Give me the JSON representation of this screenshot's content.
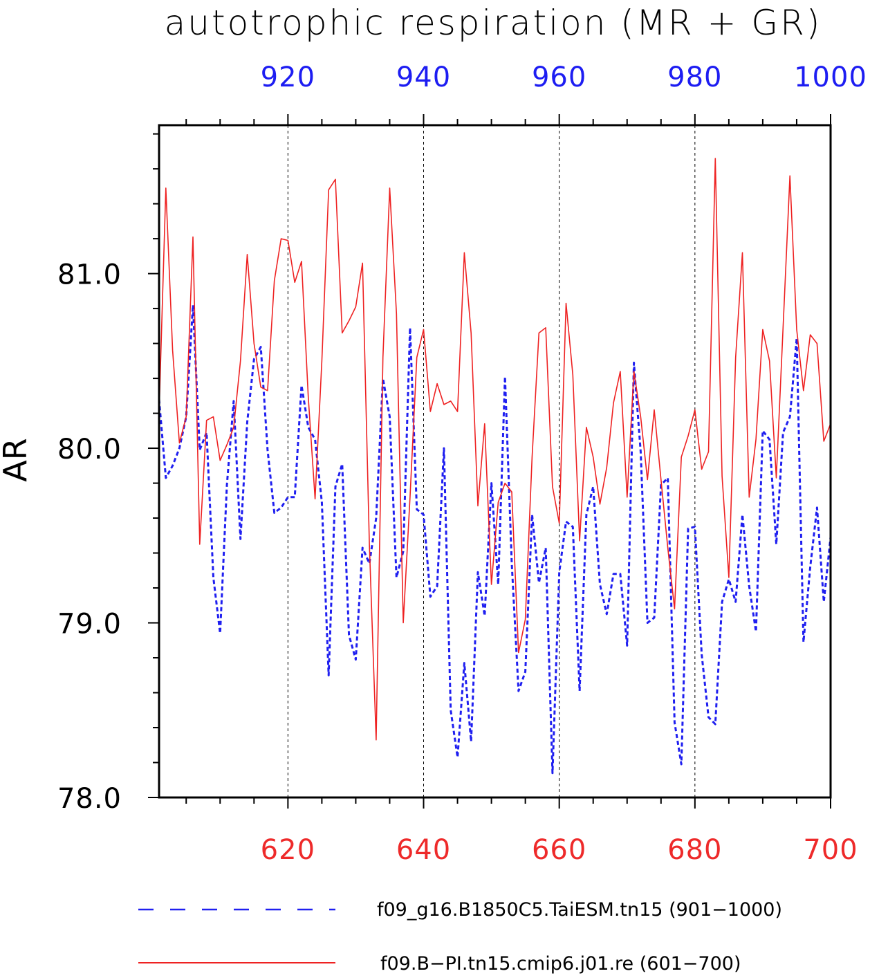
{
  "chart_data": {
    "type": "line",
    "title": "autotrophic respiration (MR + GR)",
    "ylabel": "AR",
    "ylim": [
      78.0,
      81.85
    ],
    "y_ticks": [
      "78.0",
      "79.0",
      "80.0",
      "81.0"
    ],
    "grid": "dashed vertical at major x ticks",
    "x_top": {
      "range": [
        901,
        1000
      ],
      "ticks": [
        "920",
        "940",
        "960",
        "980",
        "1000"
      ],
      "color": "#1f1ff0"
    },
    "x_bottom": {
      "range": [
        601,
        700
      ],
      "ticks": [
        "620",
        "640",
        "660",
        "680",
        "700"
      ],
      "color": "#ee2222"
    },
    "series": [
      {
        "name": "f09_g16.B1850C5.TaiESM.tn15 (901-1000)",
        "axis": "top",
        "color": "#1f1ff0",
        "style": "dashed",
        "x_start": 901,
        "values": [
          80.28,
          79.83,
          79.9,
          80.0,
          80.18,
          80.82,
          79.99,
          80.09,
          79.26,
          78.94,
          79.79,
          80.27,
          79.48,
          80.15,
          80.51,
          80.58,
          79.99,
          79.63,
          79.66,
          79.72,
          79.72,
          80.36,
          80.12,
          80.05,
          79.69,
          78.7,
          79.78,
          79.91,
          78.93,
          78.79,
          79.43,
          79.34,
          79.6,
          80.4,
          80.18,
          79.26,
          79.41,
          80.69,
          79.65,
          79.62,
          79.15,
          79.21,
          80.0,
          78.5,
          78.23,
          78.77,
          78.32,
          79.29,
          79.04,
          79.8,
          79.22,
          80.41,
          79.34,
          78.61,
          78.72,
          79.62,
          79.23,
          79.43,
          78.14,
          79.29,
          79.58,
          79.55,
          78.61,
          79.62,
          79.78,
          79.22,
          79.05,
          79.28,
          79.28,
          78.87,
          80.49,
          79.98,
          79.0,
          79.03,
          79.79,
          79.83,
          78.43,
          78.19,
          79.54,
          79.55,
          78.82,
          78.46,
          78.42,
          79.12,
          79.25,
          79.12,
          79.62,
          79.21,
          78.95,
          80.1,
          80.05,
          79.45,
          80.09,
          80.18,
          80.63,
          78.89,
          79.32,
          79.66,
          79.12,
          79.49
        ],
        "y_end": 79.49
      },
      {
        "name": "f09.B-PI.tn15.cmip6.j01.re (601-700)",
        "axis": "bottom",
        "color": "#ee2222",
        "style": "solid",
        "x_start": 601,
        "values": [
          80.2,
          81.49,
          80.56,
          80.03,
          80.18,
          81.21,
          79.45,
          80.16,
          80.18,
          79.93,
          80.02,
          80.12,
          80.5,
          81.11,
          80.6,
          80.35,
          80.33,
          80.96,
          81.2,
          81.19,
          80.95,
          81.07,
          80.29,
          79.71,
          80.5,
          81.48,
          81.54,
          80.66,
          80.73,
          80.81,
          81.06,
          79.45,
          78.33,
          80.52,
          81.49,
          80.77,
          79.0,
          79.72,
          80.52,
          80.68,
          80.21,
          80.37,
          80.25,
          80.27,
          80.21,
          81.12,
          80.66,
          79.67,
          80.14,
          79.22,
          79.69,
          79.8,
          79.75,
          78.83,
          79.02,
          79.95,
          80.66,
          80.69,
          79.78,
          79.57,
          80.83,
          80.42,
          79.47,
          80.12,
          79.95,
          79.68,
          79.89,
          80.26,
          80.44,
          79.72,
          80.44,
          80.18,
          79.82,
          80.22,
          79.82,
          79.43,
          79.08,
          79.95,
          80.07,
          80.22,
          79.88,
          79.98,
          81.66,
          79.84,
          79.26,
          80.52,
          81.12,
          79.72,
          80.05,
          80.68,
          80.5,
          79.83,
          80.69,
          81.56,
          80.68,
          80.33,
          80.65,
          80.6,
          80.04,
          80.14
        ],
        "y_end": 80.14
      }
    ],
    "legend": "bottom",
    "legend_entries": [
      "f09_g16.B1850C5.TaiESM.tn15 (901−1000)",
      "f09.B−PI.tn15.cmip6.j01.re (601−700)"
    ]
  }
}
